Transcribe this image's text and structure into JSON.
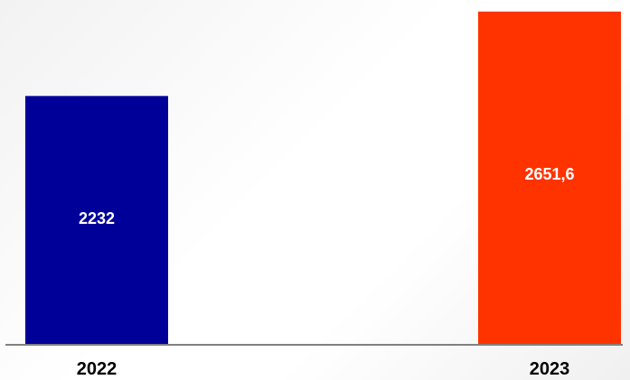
{
  "chart_data": {
    "type": "bar",
    "categories": [
      "2022",
      "2023"
    ],
    "values": [
      2232,
      2651.6
    ],
    "value_labels": [
      "2232",
      "2651,6"
    ],
    "colors": [
      "#000099",
      "#FF3300"
    ],
    "axis_color": "#808080",
    "label_color": "#ffffff",
    "tick_label_color": "#000000",
    "ylim": [
      1000,
      2700
    ],
    "grid": false,
    "legend": "none"
  }
}
